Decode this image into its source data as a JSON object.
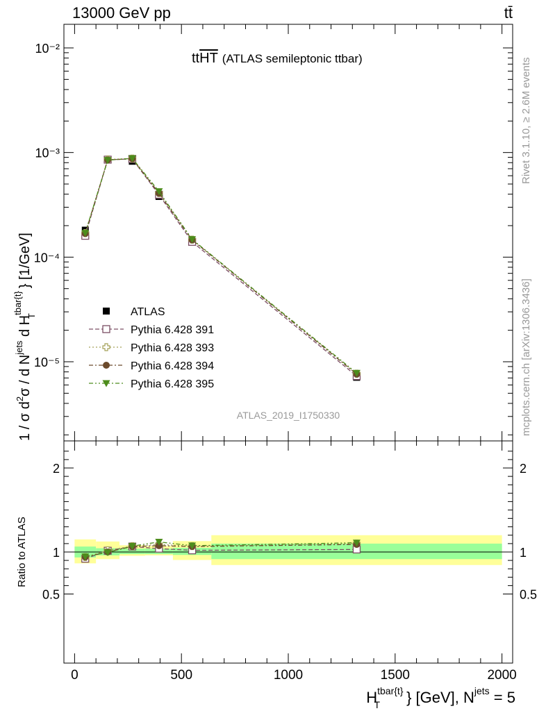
{
  "header": {
    "beam": "13000 GeV pp",
    "process": "tt̄"
  },
  "side_labels": {
    "rivet": "Rivet 3.1.10, ≥ 2.6M events",
    "mcplots": "mcplots.cern.ch [arXiv:1306.3436]"
  },
  "chart_data": [
    {
      "type": "scatter",
      "panel": "main",
      "title_main": "tt",
      "title_overline": "HT",
      "title_suffix": "(ATLAS semileptonic ttbar)",
      "ylabel": "1 / σ d²σ / d N^jets d H_T^tbar{t} [1/GeV]",
      "yscale": "log",
      "ylim": [
        2e-06,
        0.017
      ],
      "xlim": [
        -50,
        2050
      ],
      "y_tick_labels": [
        "10⁻²",
        "10⁻³",
        "10⁻⁴",
        "10⁻⁵"
      ],
      "watermark": "ATLAS_2019_I1750330",
      "legend_position": "middle-left",
      "x": [
        50,
        155,
        270,
        395,
        550,
        1320
      ],
      "series": [
        {
          "name": "ATLAS",
          "marker": "square-filled",
          "color": "#000000",
          "values": [
            0.000181,
            0.000848,
            0.000825,
            0.00038,
            0.000142,
            7.1e-06
          ]
        },
        {
          "name": "Pythia 6.428 391",
          "marker": "square-open",
          "line": "dash",
          "color": "#7b4d63",
          "values": [
            0.00016,
            0.000855,
            0.000868,
            0.000395,
            0.00014,
            7.3e-06
          ]
        },
        {
          "name": "Pythia 6.428 393",
          "marker": "cross-open",
          "line": "dot",
          "color": "#a3a058",
          "values": [
            0.00017,
            0.00086,
            0.000875,
            0.00041,
            0.000147,
            7.7e-06
          ]
        },
        {
          "name": "Pythia 6.428 394",
          "marker": "circle-filled",
          "line": "dashdot",
          "color": "#6b4a2c",
          "values": [
            0.000168,
            0.00085,
            0.000872,
            0.000408,
            0.000146,
            7.6e-06
          ]
        },
        {
          "name": "Pythia 6.428 395",
          "marker": "triangle-down-filled",
          "line": "dashdotdot",
          "color": "#4d8c1c",
          "values": [
            0.00017,
            0.000845,
            0.00088,
            0.000425,
            0.000148,
            7.8e-06
          ]
        }
      ]
    },
    {
      "type": "scatter",
      "panel": "ratio",
      "ylabel": "Ratio to ATLAS",
      "xlabel": "H_T^tbar{t} [GeV], N^jets = 5",
      "ylim": [
        0.4,
        2.35
      ],
      "xlim": [
        -50,
        2050
      ],
      "y_tick_labels": [
        "0.5",
        "1",
        "2"
      ],
      "x_tick_labels": [
        "0",
        "500",
        "1000",
        "1500",
        "2000"
      ],
      "x": [
        50,
        155,
        270,
        395,
        550,
        1320
      ],
      "bands": {
        "bin_edges": [
          0,
          100,
          210,
          330,
          460,
          640,
          2000
        ],
        "stat_lo": [
          0.935,
          0.96,
          0.975,
          0.975,
          0.965,
          0.915
        ],
        "stat_hi": [
          1.065,
          1.045,
          1.04,
          1.04,
          1.05,
          1.1
        ],
        "total_lo": [
          0.865,
          0.915,
          0.955,
          0.96,
          0.905,
          0.845
        ],
        "total_hi": [
          1.15,
          1.125,
          1.08,
          1.07,
          1.13,
          1.2
        ],
        "stat_color": "#99ff99",
        "total_color": "#ffff99"
      },
      "series": [
        {
          "name": "Pythia 6.428 391",
          "values": [
            0.92,
            1.015,
            1.065,
            1.04,
            1.02,
            1.03
          ]
        },
        {
          "name": "Pythia 6.428 393",
          "values": [
            0.94,
            1.02,
            1.07,
            1.09,
            1.07,
            1.1
          ]
        },
        {
          "name": "Pythia 6.428 394",
          "values": [
            0.94,
            1.0,
            1.065,
            1.075,
            1.065,
            1.09
          ]
        },
        {
          "name": "Pythia 6.428 395",
          "values": [
            0.945,
            0.995,
            1.07,
            1.12,
            1.075,
            1.11
          ]
        }
      ]
    }
  ]
}
